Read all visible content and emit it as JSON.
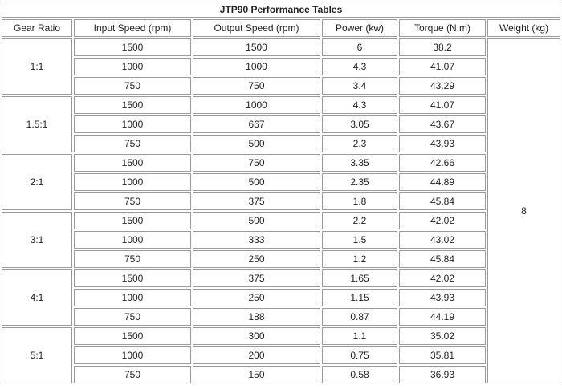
{
  "table": {
    "title": "JTP90 Performance Tables",
    "headers": [
      "Gear Ratio",
      "Input Speed (rpm)",
      "Output Speed (rpm)",
      "Power (kw)",
      "Torque (N.m)",
      "Weight (kg)"
    ],
    "weight": "8",
    "groups": [
      {
        "ratio": "1:1",
        "rows": [
          [
            "1500",
            "1500",
            "6",
            "38.2"
          ],
          [
            "1000",
            "1000",
            "4.3",
            "41.07"
          ],
          [
            "750",
            "750",
            "3.4",
            "43.29"
          ]
        ]
      },
      {
        "ratio": "1.5:1",
        "rows": [
          [
            "1500",
            "1000",
            "4.3",
            "41.07"
          ],
          [
            "1000",
            "667",
            "3.05",
            "43.67"
          ],
          [
            "750",
            "500",
            "2.3",
            "43.93"
          ]
        ]
      },
      {
        "ratio": "2:1",
        "rows": [
          [
            "1500",
            "750",
            "3.35",
            "42.66"
          ],
          [
            "1000",
            "500",
            "2.35",
            "44.89"
          ],
          [
            "750",
            "375",
            "1.8",
            "45.84"
          ]
        ]
      },
      {
        "ratio": "3:1",
        "rows": [
          [
            "1500",
            "500",
            "2.2",
            "42.02"
          ],
          [
            "1000",
            "333",
            "1.5",
            "43.02"
          ],
          [
            "750",
            "250",
            "1.2",
            "45.84"
          ]
        ]
      },
      {
        "ratio": "4:1",
        "rows": [
          [
            "1500",
            "375",
            "1.65",
            "42.02"
          ],
          [
            "1000",
            "250",
            "1.15",
            "43.93"
          ],
          [
            "750",
            "188",
            "0.87",
            "44.19"
          ]
        ]
      },
      {
        "ratio": "5:1",
        "rows": [
          [
            "1500",
            "300",
            "1.1",
            "35.02"
          ],
          [
            "1000",
            "200",
            "0.75",
            "35.81"
          ],
          [
            "750",
            "150",
            "0.58",
            "36.93"
          ]
        ]
      }
    ]
  }
}
